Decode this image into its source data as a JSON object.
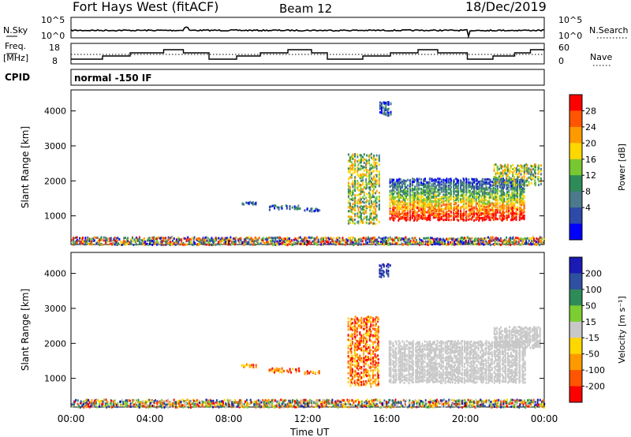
{
  "header": {
    "title": "Fort Hays West (fitACF)",
    "beam": "Beam 12",
    "date": "18/Dec/2019"
  },
  "noise_panel": {
    "left_label": "N.Sky",
    "right_label": "N.Search",
    "ticks": [
      "10^5",
      "10^0"
    ]
  },
  "freq_panel": {
    "left_label_1": "Freq.",
    "left_label_2": "[MHz]",
    "left_ticks": [
      "18",
      "8"
    ],
    "right_label": "Nave",
    "right_ticks": [
      "60",
      "0"
    ]
  },
  "cpid": {
    "label": "CPID",
    "text": "normal -150 IF"
  },
  "chart_data": [
    {
      "type": "heatmap",
      "title": "Power",
      "xlabel": "Time UT",
      "ylabel": "Slant Range [km]",
      "xlim": [
        "00:00",
        "24:00"
      ],
      "x_ticks": [
        "00:00",
        "04:00",
        "08:00",
        "12:00",
        "16:00",
        "20:00",
        "00:00"
      ],
      "ylim": [
        180,
        4600
      ],
      "y_ticks": [
        1000,
        2000,
        3000,
        4000
      ],
      "colorbar": {
        "label": "Power [dB]",
        "ticks": [
          "28",
          "24",
          "20",
          "16",
          "12",
          "8",
          "4"
        ],
        "colors": [
          "#ff0000",
          "#ff5500",
          "#ff9900",
          "#ffd700",
          "#78c832",
          "#2e8b57",
          "#4a7a8c",
          "#2c4aa8",
          "#0000ff"
        ]
      },
      "regions": [
        {
          "t_start": 0.0,
          "t_end": 24.0,
          "r_min": 200,
          "r_max": 420,
          "level": "mixed"
        },
        {
          "t_start": 8.6,
          "t_end": 9.4,
          "r_min": 1340,
          "r_max": 1430,
          "level": "low"
        },
        {
          "t_start": 10.0,
          "t_end": 11.6,
          "r_min": 1200,
          "r_max": 1330,
          "level": "low"
        },
        {
          "t_start": 11.8,
          "t_end": 12.6,
          "r_min": 1150,
          "r_max": 1240,
          "level": "low"
        },
        {
          "t_start": 14.0,
          "t_end": 15.6,
          "r_min": 800,
          "r_max": 2800,
          "level": "mid"
        },
        {
          "t_start": 15.6,
          "t_end": 16.2,
          "r_min": 3900,
          "r_max": 4300,
          "level": "low"
        },
        {
          "t_start": 16.1,
          "t_end": 23.0,
          "r_min": 900,
          "r_max": 2100,
          "level": "high"
        },
        {
          "t_start": 21.4,
          "t_end": 23.8,
          "r_min": 1900,
          "r_max": 2500,
          "level": "mid"
        }
      ]
    },
    {
      "type": "heatmap",
      "title": "Velocity",
      "xlabel": "Time UT",
      "ylabel": "Slant Range [km]",
      "xlim": [
        "00:00",
        "24:00"
      ],
      "x_ticks": [
        "00:00",
        "04:00",
        "08:00",
        "12:00",
        "16:00",
        "20:00",
        "00:00"
      ],
      "ylim": [
        180,
        4600
      ],
      "y_ticks": [
        1000,
        2000,
        3000,
        4000
      ],
      "colorbar": {
        "label": "Velocity [m s⁻¹]",
        "ticks": [
          "200",
          "100",
          "50",
          "15",
          "-15",
          "-50",
          "-100",
          "-200"
        ],
        "colors": [
          "#1a1ab4",
          "#2f4fa0",
          "#2e8b57",
          "#7ccd32",
          "#c8c8c8",
          "#ffd700",
          "#ff9900",
          "#ff5500",
          "#ff0000"
        ]
      },
      "regions": [
        {
          "t_start": 0.0,
          "t_end": 24.0,
          "r_min": 200,
          "r_max": 420,
          "level": "mixed"
        },
        {
          "t_start": 8.6,
          "t_end": 9.4,
          "r_min": 1340,
          "r_max": 1430,
          "level": "low"
        },
        {
          "t_start": 10.0,
          "t_end": 11.6,
          "r_min": 1200,
          "r_max": 1330,
          "level": "low"
        },
        {
          "t_start": 11.8,
          "t_end": 12.6,
          "r_min": 1150,
          "r_max": 1240,
          "level": "low"
        },
        {
          "t_start": 14.0,
          "t_end": 15.6,
          "r_min": 800,
          "r_max": 2800,
          "level": "low"
        },
        {
          "t_start": 15.6,
          "t_end": 16.2,
          "r_min": 3900,
          "r_max": 4300,
          "level": "positive"
        },
        {
          "t_start": 16.1,
          "t_end": 23.0,
          "r_min": 900,
          "r_max": 2100,
          "level": "ground"
        },
        {
          "t_start": 21.4,
          "t_end": 23.8,
          "r_min": 1900,
          "r_max": 2500,
          "level": "ground"
        }
      ]
    }
  ]
}
